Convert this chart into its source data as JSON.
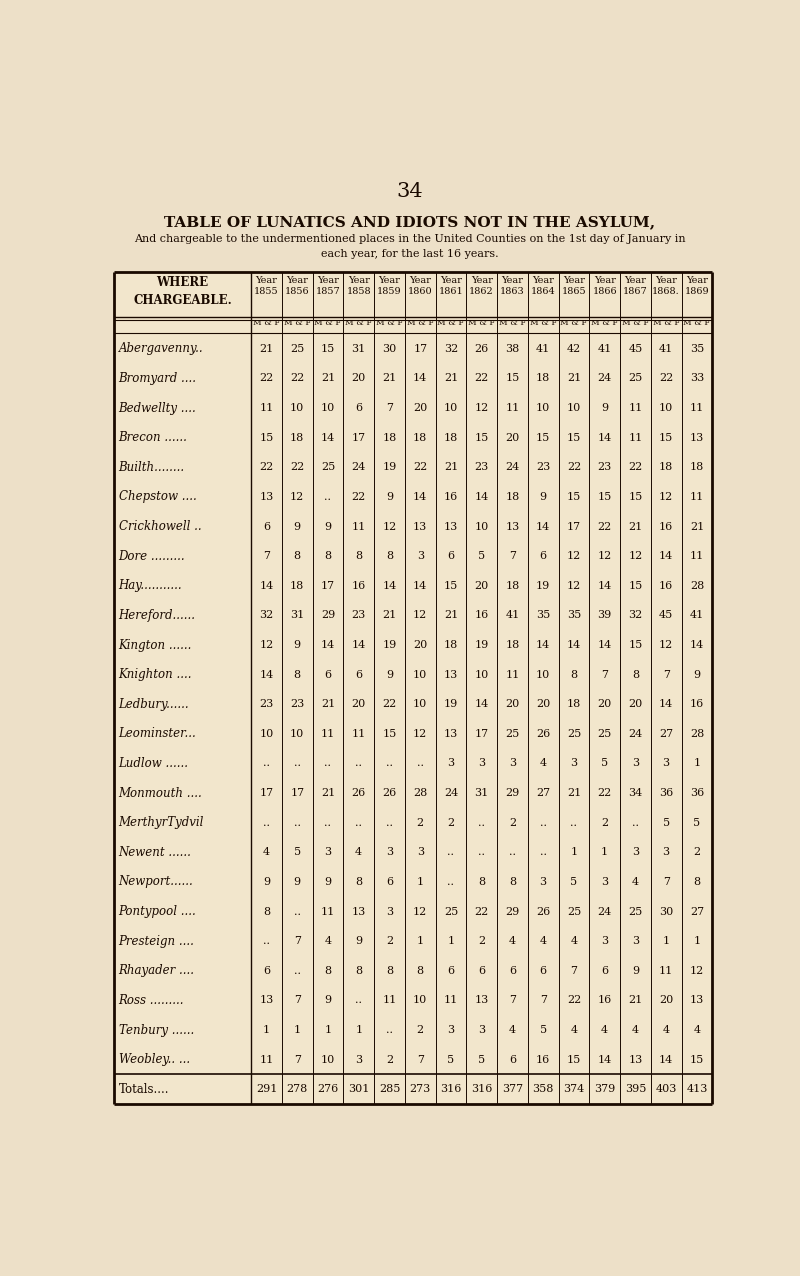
{
  "page_number": "34",
  "title": "TABLE OF LUNATICS AND IDIOTS NOT IN THE ASYLUM,",
  "subtitle": "And chargeable to the undermentioned places in the United Counties on the 1st day of January in\neach year, for the last 16 years.",
  "year_labels": [
    "Year\n1855",
    "Year\n1856",
    "Year\n1857",
    "Year\n1858",
    "Year\n1859",
    "Year\n1860",
    "Year\n1861",
    "Year\n1862",
    "Year\n1863",
    "Year\n1864",
    "Year\n1865",
    "Year\n1866",
    "Year\n1867",
    "Year\n1868.",
    "Year\n1869"
  ],
  "mf_label": "M & F",
  "rows": [
    {
      "place": "Abergavenny..",
      "values": [
        "21",
        "25",
        "15",
        "31",
        "30",
        "17",
        "32",
        "26",
        "38",
        "41",
        "42",
        "41",
        "45",
        "41",
        "35"
      ]
    },
    {
      "place": "Bromyard ....",
      "values": [
        "22",
        "22",
        "21",
        "20",
        "21",
        "14",
        "21",
        "22",
        "15",
        "18",
        "21",
        "24",
        "25",
        "22",
        "33"
      ]
    },
    {
      "place": "Bedwellty ....",
      "values": [
        "11",
        "10",
        "10",
        "6",
        "7",
        "20",
        "10",
        "12",
        "11",
        "10",
        "10",
        "9",
        "11",
        "10",
        "11"
      ]
    },
    {
      "place": "Brecon ......",
      "values": [
        "15",
        "18",
        "14",
        "17",
        "18",
        "18",
        "18",
        "15",
        "20",
        "15",
        "15",
        "14",
        "11",
        "15",
        "13"
      ]
    },
    {
      "place": "Builth........",
      "values": [
        "22",
        "22",
        "25",
        "24",
        "19",
        "22",
        "21",
        "23",
        "24",
        "23",
        "22",
        "23",
        "22",
        "18",
        "18"
      ]
    },
    {
      "place": "Chepstow ....",
      "values": [
        "13",
        "12",
        "..",
        "22",
        "9",
        "14",
        "16",
        "14",
        "18",
        "9",
        "15",
        "15",
        "15",
        "12",
        "11"
      ]
    },
    {
      "place": "Crickhowell ..",
      "values": [
        "6",
        "9",
        "9",
        "11",
        "12",
        "13",
        "13",
        "10",
        "13",
        "14",
        "17",
        "22",
        "21",
        "16",
        "21"
      ]
    },
    {
      "place": "Dore .........",
      "values": [
        "7",
        "8",
        "8",
        "8",
        "8",
        "3",
        "6",
        "5",
        "7",
        "6",
        "12",
        "12",
        "12",
        "14",
        "11"
      ]
    },
    {
      "place": "Hay...........",
      "values": [
        "14",
        "18",
        "17",
        "16",
        "14",
        "14",
        "15",
        "20",
        "18",
        "19",
        "12",
        "14",
        "15",
        "16",
        "28"
      ]
    },
    {
      "place": "Hereford......",
      "values": [
        "32",
        "31",
        "29",
        "23",
        "21",
        "12",
        "21",
        "16",
        "41",
        "35",
        "35",
        "39",
        "32",
        "45",
        "41"
      ]
    },
    {
      "place": "Kington ......",
      "values": [
        "12",
        "9",
        "14",
        "14",
        "19",
        "20",
        "18",
        "19",
        "18",
        "14",
        "14",
        "14",
        "15",
        "12",
        "14"
      ]
    },
    {
      "place": "Knighton ....",
      "values": [
        "14",
        "8",
        "6",
        "6",
        "9",
        "10",
        "13",
        "10",
        "11",
        "10",
        "8",
        "7",
        "8",
        "7",
        "9"
      ]
    },
    {
      "place": "Ledbury......",
      "values": [
        "23",
        "23",
        "21",
        "20",
        "22",
        "10",
        "19",
        "14",
        "20",
        "20",
        "18",
        "20",
        "20",
        "14",
        "16"
      ]
    },
    {
      "place": "Leominster...",
      "values": [
        "10",
        "10",
        "11",
        "11",
        "15",
        "12",
        "13",
        "17",
        "25",
        "26",
        "25",
        "25",
        "24",
        "27",
        "28"
      ]
    },
    {
      "place": "Ludlow ......",
      "values": [
        "..",
        "..",
        "..",
        "..",
        "..",
        "..",
        "3",
        "3",
        "3",
        "4",
        "3",
        "5",
        "3",
        "3",
        "1"
      ]
    },
    {
      "place": "Monmouth ....",
      "values": [
        "17",
        "17",
        "21",
        "26",
        "26",
        "28",
        "24",
        "31",
        "29",
        "27",
        "21",
        "22",
        "34",
        "36",
        "36"
      ]
    },
    {
      "place": "MerthyrTydvil",
      "values": [
        "..",
        "..",
        "..",
        "..",
        "..",
        "2",
        "2",
        "..",
        "2",
        "..",
        "..",
        "2",
        "..",
        "5",
        "5"
      ]
    },
    {
      "place": "Newent ......",
      "values": [
        "4",
        "5",
        "3",
        "4",
        "3",
        "3",
        "..",
        "..",
        "..",
        "..",
        "1",
        "1",
        "3",
        "3",
        "2"
      ]
    },
    {
      "place": "Newport......",
      "values": [
        "9",
        "9",
        "9",
        "8",
        "6",
        "1",
        "..",
        "8",
        "8",
        "3",
        "5",
        "3",
        "4",
        "7",
        "8"
      ]
    },
    {
      "place": "Pontypool ....",
      "values": [
        "8",
        "..",
        "11",
        "13",
        "3",
        "12",
        "25",
        "22",
        "29",
        "26",
        "25",
        "24",
        "25",
        "30",
        "27"
      ]
    },
    {
      "place": "Presteign ....",
      "values": [
        "..",
        "7",
        "4",
        "9",
        "2",
        "1",
        "1",
        "2",
        "4",
        "4",
        "4",
        "3",
        "3",
        "1",
        "1"
      ]
    },
    {
      "place": "Rhayader ....",
      "values": [
        "6",
        "..",
        "8",
        "8",
        "8",
        "8",
        "6",
        "6",
        "6",
        "6",
        "7",
        "6",
        "9",
        "11",
        "12"
      ]
    },
    {
      "place": "Ross .........",
      "values": [
        "13",
        "7",
        "9",
        "..",
        "11",
        "10",
        "11",
        "13",
        "7",
        "7",
        "22",
        "16",
        "21",
        "20",
        "13"
      ]
    },
    {
      "place": "Tenbury ......",
      "values": [
        "1",
        "1",
        "1",
        "1",
        "..",
        "2",
        "3",
        "3",
        "4",
        "5",
        "4",
        "4",
        "4",
        "4",
        "4"
      ]
    },
    {
      "place": "Weobley.. ...",
      "values": [
        "11",
        "7",
        "10",
        "3",
        "2",
        "7",
        "5",
        "5",
        "6",
        "16",
        "15",
        "14",
        "13",
        "14",
        "15"
      ]
    },
    {
      "place": "Totals....",
      "values": [
        "291",
        "278",
        "276",
        "301",
        "285",
        "273",
        "316",
        "316",
        "377",
        "358",
        "374",
        "379",
        "395",
        "403",
        "413"
      ],
      "is_total": true
    }
  ],
  "bg_color": "#ede0c8",
  "table_bg": "#f2e6cc",
  "line_color": "#1a0a00",
  "text_color": "#1a0a00"
}
